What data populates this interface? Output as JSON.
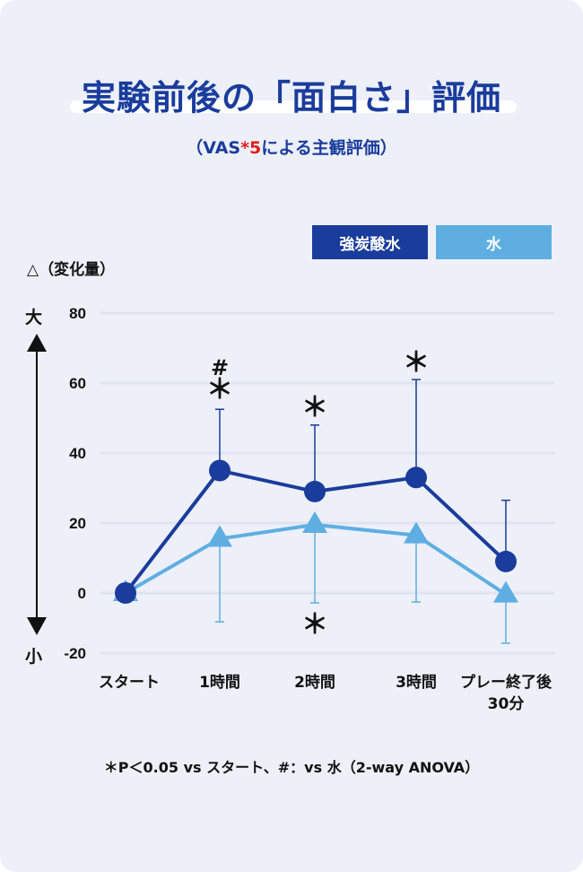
{
  "title": "実験前後の「面白さ」評価",
  "subtitle": {
    "pre": "（VAS",
    "mark": "*5",
    "post": "による主観評価）"
  },
  "note": "＊P＜0.05 vs スタート、#：vs 水（2-way ANOVA）",
  "chart_data": {
    "type": "line",
    "ylabel": "△（変化量）",
    "y_top_label": "大",
    "y_bottom_label": "小",
    "yticks": [
      80,
      60,
      40,
      20,
      0,
      -20
    ],
    "ylim": [
      -20,
      80
    ],
    "grid": true,
    "legend_placement": "top-right",
    "categories": [
      "スタート",
      "1時間",
      "2時間",
      "3時間",
      "プレー終了後\n30分"
    ],
    "series": [
      {
        "name": "強炭酸水",
        "color": "#1a3c9c",
        "marker": "circle",
        "values": [
          0,
          35,
          29,
          33,
          9
        ],
        "error_upper": [
          null,
          52.5,
          48,
          61,
          26.5
        ]
      },
      {
        "name": "水",
        "color": "#5eaee2",
        "marker": "triangle",
        "values": [
          0,
          15.5,
          19.5,
          16.5,
          -0.5
        ],
        "error_lower": [
          null,
          -9.6,
          -3.3,
          -3,
          -16.7
        ]
      }
    ],
    "annotations": [
      {
        "category": "1時間",
        "text": "＊",
        "series": "強炭酸水"
      },
      {
        "category": "1時間",
        "text": "#",
        "series": "強炭酸水"
      },
      {
        "category": "2時間",
        "text": "＊",
        "series": "強炭酸水"
      },
      {
        "category": "3時間",
        "text": "＊",
        "series": "強炭酸水"
      },
      {
        "category": "2時間",
        "text": "＊",
        "series": "水"
      }
    ]
  }
}
